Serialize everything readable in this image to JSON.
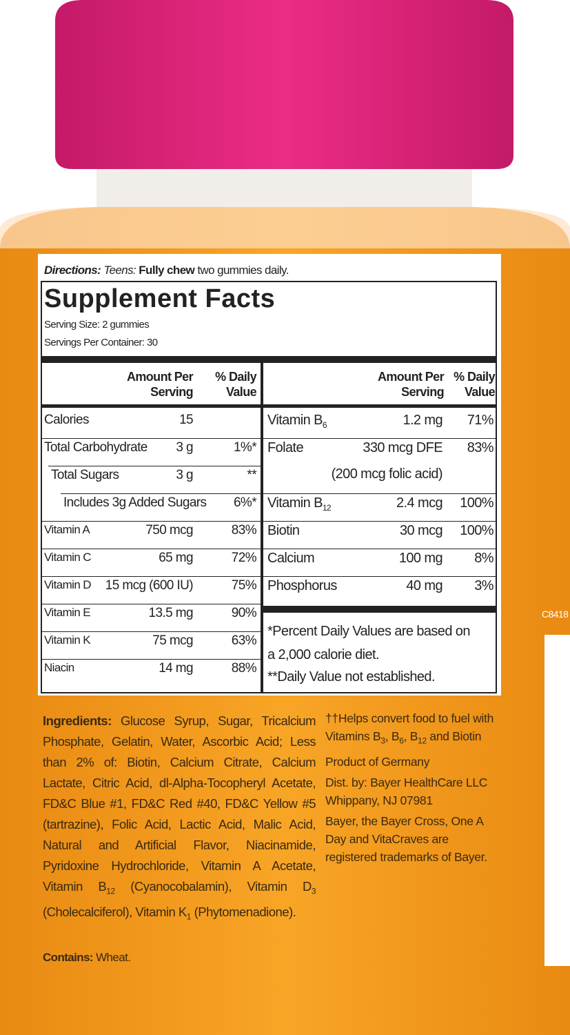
{
  "directions": {
    "label": "Directions:",
    "who": "Teens:",
    "bold": "Fully chew",
    "rest": "two gummies daily."
  },
  "title": "Supplement Facts",
  "serving_size": "Serving Size: 2 gummies",
  "servings_per_container": "Servings Per Container: 30",
  "columns": {
    "amount": "Amount Per Serving",
    "dv": "% Daily Value"
  },
  "left_rows": [
    {
      "name": "Calories",
      "amount": "15"
    },
    {
      "name": "Total Carbohydrate",
      "amount": "3 g",
      "dv": "1%*"
    },
    {
      "name": "Total Sugars",
      "amount": "3 g",
      "dv": "**"
    },
    {
      "name": "Includes 3g Added Sugars",
      "dv": "6%*"
    },
    {
      "name": "Vitamin A",
      "amount": "750 mcg",
      "dv": "83%"
    },
    {
      "name": "Vitamin C",
      "amount": "65 mg",
      "dv": "72%"
    },
    {
      "name": "Vitamin D",
      "amount": "15 mcg (600 IU)",
      "dv": "75%"
    },
    {
      "name": "Vitamin E",
      "amount": "13.5 mg",
      "dv": "90%"
    },
    {
      "name": "Vitamin K",
      "amount": "75 mcg",
      "dv": "63%"
    },
    {
      "name": "Niacin",
      "amount": "14 mg",
      "dv": "88%"
    }
  ],
  "right_rows": [
    {
      "name": "Vitamin B",
      "sub": "6",
      "amount": "1.2 mg",
      "dv": "71%"
    },
    {
      "name": "Folate",
      "amount": "330 mcg DFE",
      "amount2": "(200 mcg folic acid)",
      "dv": "83%"
    },
    {
      "name": "Vitamin B",
      "sub": "12",
      "amount": "2.4 mcg",
      "dv": "100%"
    },
    {
      "name": "Biotin",
      "amount": "30 mcg",
      "dv": "100%"
    },
    {
      "name": "Calcium",
      "amount": "100 mg",
      "dv": "8%"
    },
    {
      "name": "Phosphorus",
      "amount": "40 mg",
      "dv": "3%"
    }
  ],
  "footnotes": [
    "*Percent Daily Values are based on a 2,000 calorie diet.",
    "**Daily Value not established."
  ],
  "ingredients": {
    "label": "Ingredients:",
    "segments": [
      {
        "text": "Glucose Syrup, Sugar, Tricalcium Phosphate, Gelatin, Water, Ascorbic Acid; Less than 2% of: Biotin, Calcium Citrate, Calcium Lactate, Citric Acid, dl-Alpha-Tocopheryl Acetate, FD&C Blue #1, FD&C Red #40, FD&C Yellow #5 (tartrazine), Folic Acid, Lactic Acid, Malic Acid, Natural and Artificial Flavor, Niacinamide, Pyridoxine Hydrochloride, Vitamin A Acetate, Vitamin B"
      },
      {
        "sub": "12"
      },
      {
        "text": " (Cyanocobalamin), Vitamin D"
      },
      {
        "sub": "3"
      },
      {
        "text": " (Cholecalciferol), Vitamin K"
      },
      {
        "sub": "1"
      },
      {
        "text": " (Phytomenadione)."
      }
    ]
  },
  "contains": {
    "label": "Contains:",
    "text": "Wheat."
  },
  "claim": [
    {
      "text": "††Helps convert food to fuel with Vitamins B"
    },
    {
      "sub": "3"
    },
    {
      "text": ", B"
    },
    {
      "sub": "6"
    },
    {
      "text": ", B"
    },
    {
      "sub": "12"
    },
    {
      "text": " and Biotin"
    }
  ],
  "origin": "Product of Germany",
  "distributor": [
    "Dist. by: Bayer HealthCare LLC",
    "Whippany, NJ 07981"
  ],
  "trademark": "Bayer, the Bayer Cross, One A Day and VitaCraves are registered trademarks of Bayer.",
  "code": "C8418"
}
